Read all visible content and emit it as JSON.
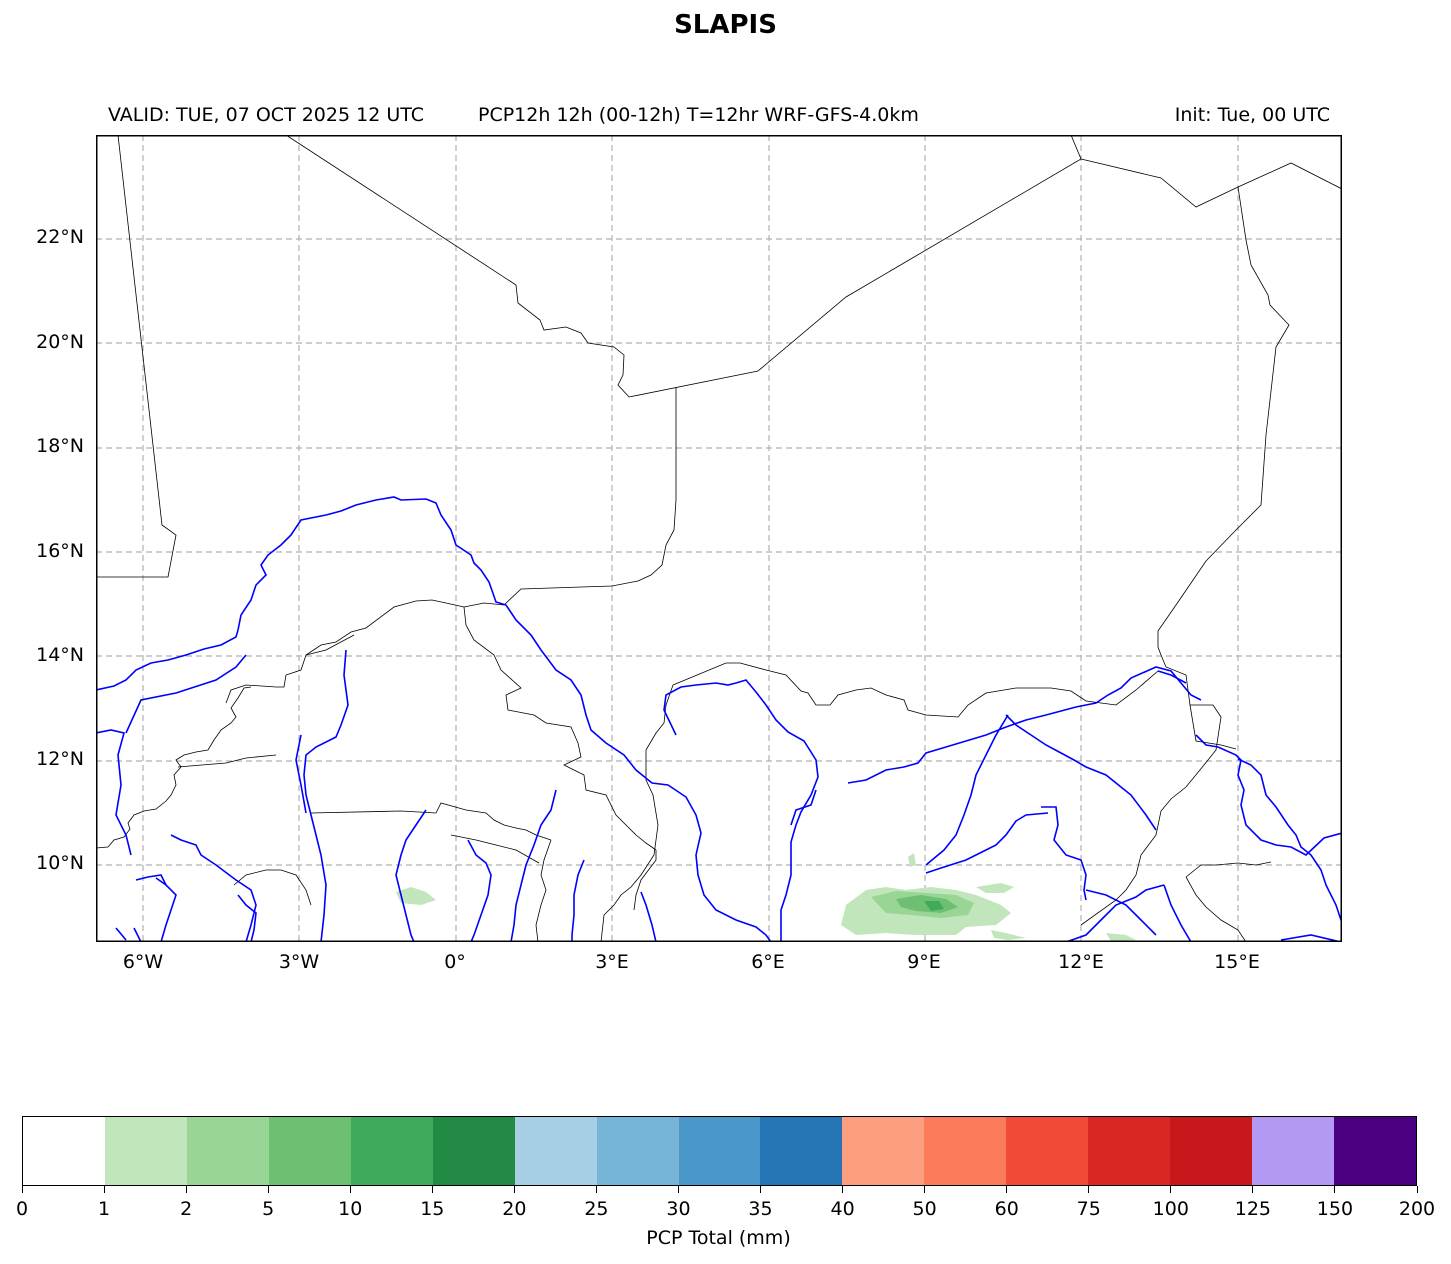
{
  "title": "SLAPIS",
  "subtitle_left": "VALID: TUE, 07 OCT 2025 12 UTC",
  "subtitle_mid": "PCP12h 12h (00-12h) T=12hr WRF-GFS-4.0km",
  "subtitle_right": "Init: Tue, 00 UTC",
  "lat_labels": [
    "22°N",
    "20°N",
    "18°N",
    "16°N",
    "14°N",
    "12°N",
    "10°N"
  ],
  "lon_labels": [
    "6°W",
    "3°W",
    "0°",
    "3°E",
    "6°E",
    "9°E",
    "12°E",
    "15°E"
  ],
  "colorbar": {
    "label": "PCP Total (mm)",
    "bounds": [
      "0",
      "1",
      "2",
      "5",
      "10",
      "15",
      "20",
      "25",
      "30",
      "35",
      "40",
      "50",
      "60",
      "75",
      "100",
      "125",
      "150",
      "200"
    ],
    "colors": [
      "#ffffff",
      "#c1e6bb",
      "#99d595",
      "#6dc072",
      "#3fa95c",
      "#228a44",
      "#a6cee4",
      "#76b4d8",
      "#4a98c9",
      "#2574b6",
      "#fc9f81",
      "#fb7b5b",
      "#f24a35",
      "#d92723",
      "#c8181c",
      "#b399f2",
      "#4a0080"
    ]
  },
  "colors": {
    "rivers": "#0000ff",
    "borders": "#000000",
    "gridlines": "#b0b0b0"
  }
}
